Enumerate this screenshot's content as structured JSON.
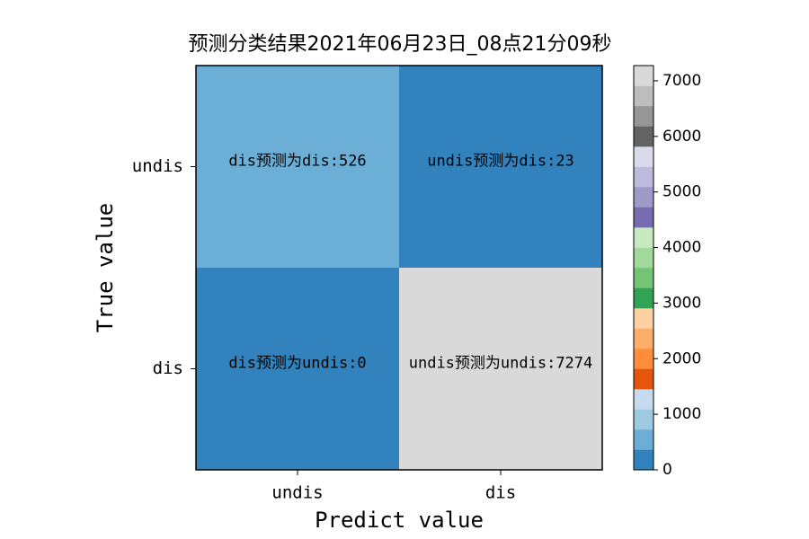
{
  "chart_data": {
    "type": "heatmap",
    "title": "预测分类结果2021年06月23日_08点21分09秒",
    "xlabel": "Predict value",
    "ylabel": "True value",
    "x_categories": [
      "undis",
      "dis"
    ],
    "y_categories": [
      "undis",
      "dis"
    ],
    "values": [
      [
        526,
        23
      ],
      [
        0,
        7274
      ]
    ],
    "value_labels": [
      [
        "dis预测为dis:526",
        "undis预测为dis:23"
      ],
      [
        "dis预测为undis:0",
        "undis预测为undis:7274"
      ]
    ],
    "zlim": [
      0,
      7274
    ],
    "zticks": [
      0,
      1000,
      2000,
      3000,
      4000,
      5000,
      6000,
      7000
    ],
    "colors": [
      "#3182bd",
      "#6baed6",
      "#9ecae1",
      "#c6dbef",
      "#e6550d",
      "#fd8d3c",
      "#fdae6b",
      "#fdd0a2",
      "#31a354",
      "#74c476",
      "#a1d99b",
      "#c7e9c0",
      "#756bb1",
      "#9e9ac8",
      "#bcbddc",
      "#dadaeb",
      "#636363",
      "#969696",
      "#bdbdbd",
      "#d9d9d9"
    ]
  }
}
